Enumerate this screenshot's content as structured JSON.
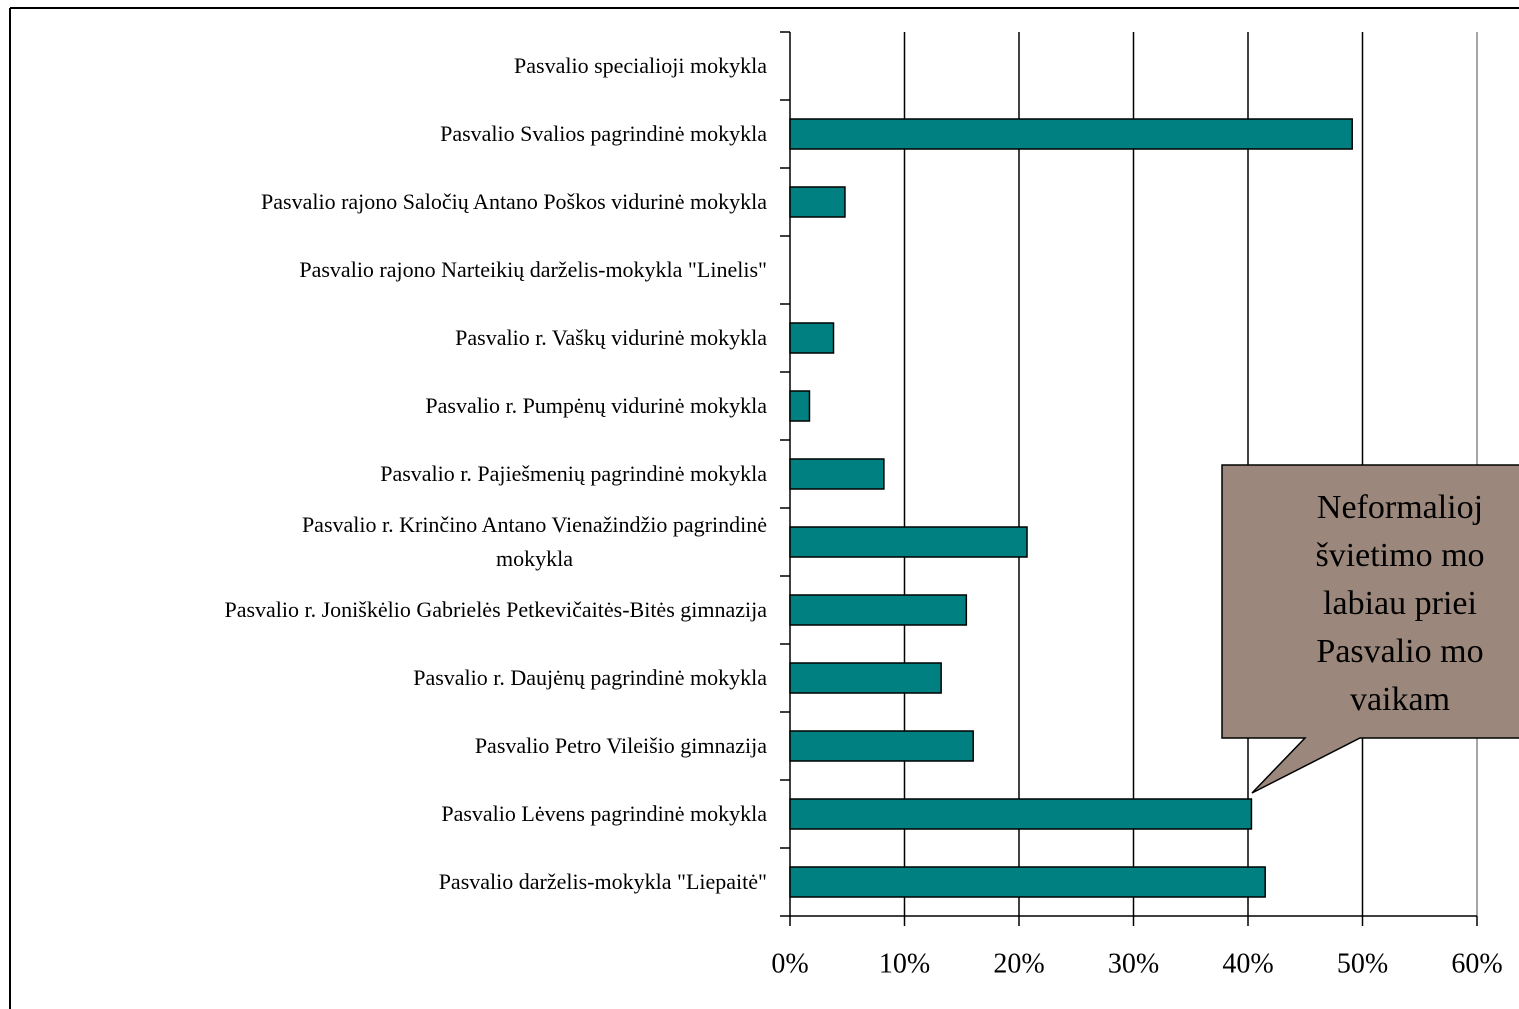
{
  "chart_data": {
    "type": "bar",
    "orientation": "horizontal",
    "categories": [
      "Pasvalio specialioji mokykla",
      "Pasvalio Svalios pagrindinė mokykla",
      "Pasvalio rajono Saločių Antano Poškos vidurinė mokykla",
      "Pasvalio rajono Narteikių darželis-mokykla \"Linelis\"",
      "Pasvalio r. Vaškų vidurinė mokykla",
      "Pasvalio r. Pumpėnų vidurinė mokykla",
      "Pasvalio r. Pajiešmenių pagrindinė mokykla",
      "Pasvalio r. Krinčino Antano Vienažindžio pagrindinė\nmokykla",
      "Pasvalio r. Joniškėlio Gabrielės Petkevičaitės-Bitės gimnazija",
      "Pasvalio r. Daujėnų pagrindinė mokykla",
      "Pasvalio Petro Vileišio gimnazija",
      "Pasvalio Lėvens pagrindinė mokykla",
      "Pasvalio darželis-mokykla \"Liepaitė\""
    ],
    "values": [
      0,
      49.1,
      4.8,
      0,
      3.8,
      1.7,
      8.2,
      20.7,
      15.4,
      13.2,
      16.0,
      40.3,
      41.5
    ],
    "color": "#008080",
    "xlim": [
      0,
      60
    ],
    "xticks": [
      {
        "value": 0,
        "label": "0%"
      },
      {
        "value": 10,
        "label": "10%"
      },
      {
        "value": 20,
        "label": "20%"
      },
      {
        "value": 30,
        "label": "30%"
      },
      {
        "value": 40,
        "label": "40%"
      },
      {
        "value": 50,
        "label": "50%"
      },
      {
        "value": 60,
        "label": "60%"
      }
    ],
    "grid": true,
    "annotation": {
      "lines": [
        "Neformalioj",
        "švietimo mo",
        "labiau priei",
        "Pasvalio mo",
        "vaikam"
      ],
      "color": "#9b877b"
    }
  }
}
